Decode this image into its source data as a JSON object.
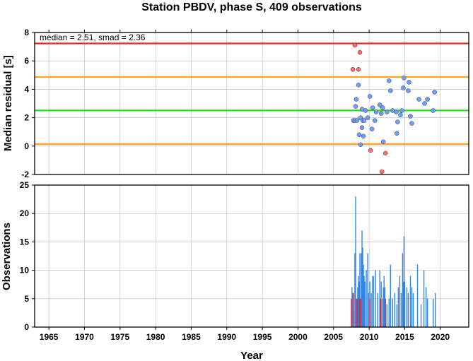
{
  "chart_data": [
    {
      "type": "scatter",
      "title": "Station PBDV, phase S, 409 observations",
      "ylabel": "Median residual [s]",
      "annotation": "median = 2.51, smad = 2.36",
      "xlim": [
        1963,
        2024
      ],
      "ylim": [
        -2,
        8
      ],
      "yticks": [
        -2,
        0,
        2,
        4,
        6,
        8
      ],
      "grid": true,
      "reference_lines": [
        {
          "y": 7.23,
          "color": "#e8262b"
        },
        {
          "y": 4.87,
          "color": "#ffa51f"
        },
        {
          "y": 2.51,
          "color": "#21e01b"
        },
        {
          "y": 0.15,
          "color": "#ffa51f"
        }
      ],
      "series": [
        {
          "color": "#6f9eff",
          "points": [
            [
              2007.8,
              1.8
            ],
            [
              2008.0,
              1.8
            ],
            [
              2008.1,
              2.8
            ],
            [
              2008.2,
              3.3
            ],
            [
              2008.3,
              1.8
            ],
            [
              2008.5,
              4.3
            ],
            [
              2008.6,
              0.8
            ],
            [
              2008.8,
              2.0
            ],
            [
              2008.8,
              0.1
            ],
            [
              2009.0,
              2.6
            ],
            [
              2009.0,
              1.3
            ],
            [
              2009.1,
              1.8
            ],
            [
              2009.2,
              0.7
            ],
            [
              2009.3,
              1.8
            ],
            [
              2009.5,
              2.5
            ],
            [
              2009.8,
              2.0
            ],
            [
              2010.1,
              3.5
            ],
            [
              2010.4,
              1.2
            ],
            [
              2010.5,
              2.7
            ],
            [
              2010.8,
              1.8
            ],
            [
              2011.0,
              2.4
            ],
            [
              2011.5,
              2.9
            ],
            [
              2011.7,
              2.3
            ],
            [
              2011.9,
              2.7
            ],
            [
              2012.0,
              0.3
            ],
            [
              2012.5,
              2.4
            ],
            [
              2012.8,
              4.6
            ],
            [
              2013.0,
              3.9
            ],
            [
              2013.3,
              2.5
            ],
            [
              2013.8,
              2.4
            ],
            [
              2013.9,
              0.9
            ],
            [
              2014.0,
              1.7
            ],
            [
              2014.4,
              2.2
            ],
            [
              2014.6,
              2.5
            ],
            [
              2014.8,
              4.1
            ],
            [
              2014.9,
              4.8
            ],
            [
              2015.5,
              3.9
            ],
            [
              2015.6,
              4.5
            ],
            [
              2015.8,
              2.1
            ],
            [
              2016.0,
              1.6
            ],
            [
              2017.0,
              3.3
            ],
            [
              2017.8,
              3.0
            ],
            [
              2018.2,
              3.3
            ],
            [
              2019.0,
              2.5
            ],
            [
              2019.2,
              3.8
            ]
          ]
        },
        {
          "color": "#ff6d6d",
          "points": [
            [
              2007.7,
              5.4
            ],
            [
              2008.0,
              7.1
            ],
            [
              2008.5,
              5.4
            ],
            [
              2008.7,
              6.6
            ],
            [
              2010.2,
              -0.3
            ],
            [
              2011.8,
              -1.8
            ],
            [
              2012.3,
              -0.5
            ]
          ]
        }
      ]
    },
    {
      "type": "bar",
      "ylabel": "Observations",
      "xlabel": "Year",
      "xlim": [
        1963,
        2024
      ],
      "ylim": [
        0,
        25
      ],
      "xticks": [
        "1965",
        "1970",
        "1975",
        "1980",
        "1985",
        "1990",
        "1995",
        "2000",
        "2005",
        "2010",
        "2015",
        "2020"
      ],
      "yticks": [
        0,
        5,
        10,
        15,
        20,
        25
      ],
      "grid": true,
      "series": [
        {
          "color": "#2f86e8",
          "points": [
            [
              2007.6,
              7
            ],
            [
              2007.7,
              6
            ],
            [
              2007.8,
              3
            ],
            [
              2008.0,
              13
            ],
            [
              2008.1,
              23
            ],
            [
              2008.2,
              5
            ],
            [
              2008.4,
              7
            ],
            [
              2008.5,
              9
            ],
            [
              2008.6,
              8
            ],
            [
              2008.7,
              13
            ],
            [
              2008.8,
              4
            ],
            [
              2008.9,
              13
            ],
            [
              2009.0,
              17
            ],
            [
              2009.1,
              14
            ],
            [
              2009.2,
              11
            ],
            [
              2009.3,
              9
            ],
            [
              2009.4,
              8
            ],
            [
              2009.6,
              10
            ],
            [
              2009.8,
              13
            ],
            [
              2009.9,
              6
            ],
            [
              2010.1,
              8
            ],
            [
              2010.3,
              6
            ],
            [
              2010.5,
              9
            ],
            [
              2010.6,
              9
            ],
            [
              2010.9,
              10
            ],
            [
              2011.2,
              6
            ],
            [
              2011.5,
              10
            ],
            [
              2011.7,
              8
            ],
            [
              2011.9,
              5
            ],
            [
              2012.0,
              7
            ],
            [
              2012.1,
              9
            ],
            [
              2012.2,
              7
            ],
            [
              2012.5,
              4
            ],
            [
              2012.8,
              5
            ],
            [
              2013.0,
              11
            ],
            [
              2013.3,
              5
            ],
            [
              2013.6,
              6
            ],
            [
              2013.9,
              4
            ],
            [
              2014.1,
              7
            ],
            [
              2014.3,
              9
            ],
            [
              2014.5,
              6
            ],
            [
              2014.7,
              13
            ],
            [
              2014.8,
              8
            ],
            [
              2014.9,
              16
            ],
            [
              2015.0,
              8
            ],
            [
              2015.3,
              7
            ],
            [
              2015.5,
              6
            ],
            [
              2015.8,
              9
            ],
            [
              2016.0,
              7
            ],
            [
              2016.2,
              6
            ],
            [
              2016.8,
              11
            ],
            [
              2017.3,
              4
            ],
            [
              2017.7,
              10
            ],
            [
              2018.0,
              7
            ],
            [
              2018.2,
              5
            ],
            [
              2019.0,
              5
            ],
            [
              2019.3,
              6
            ]
          ]
        },
        {
          "color": "#e8262b",
          "points": [
            [
              2007.5,
              5
            ],
            [
              2007.8,
              6
            ],
            [
              2008.3,
              5
            ],
            [
              2008.6,
              5
            ],
            [
              2008.8,
              5
            ],
            [
              2010.1,
              5
            ],
            [
              2011.6,
              5
            ],
            [
              2012.3,
              5
            ]
          ]
        }
      ]
    }
  ]
}
